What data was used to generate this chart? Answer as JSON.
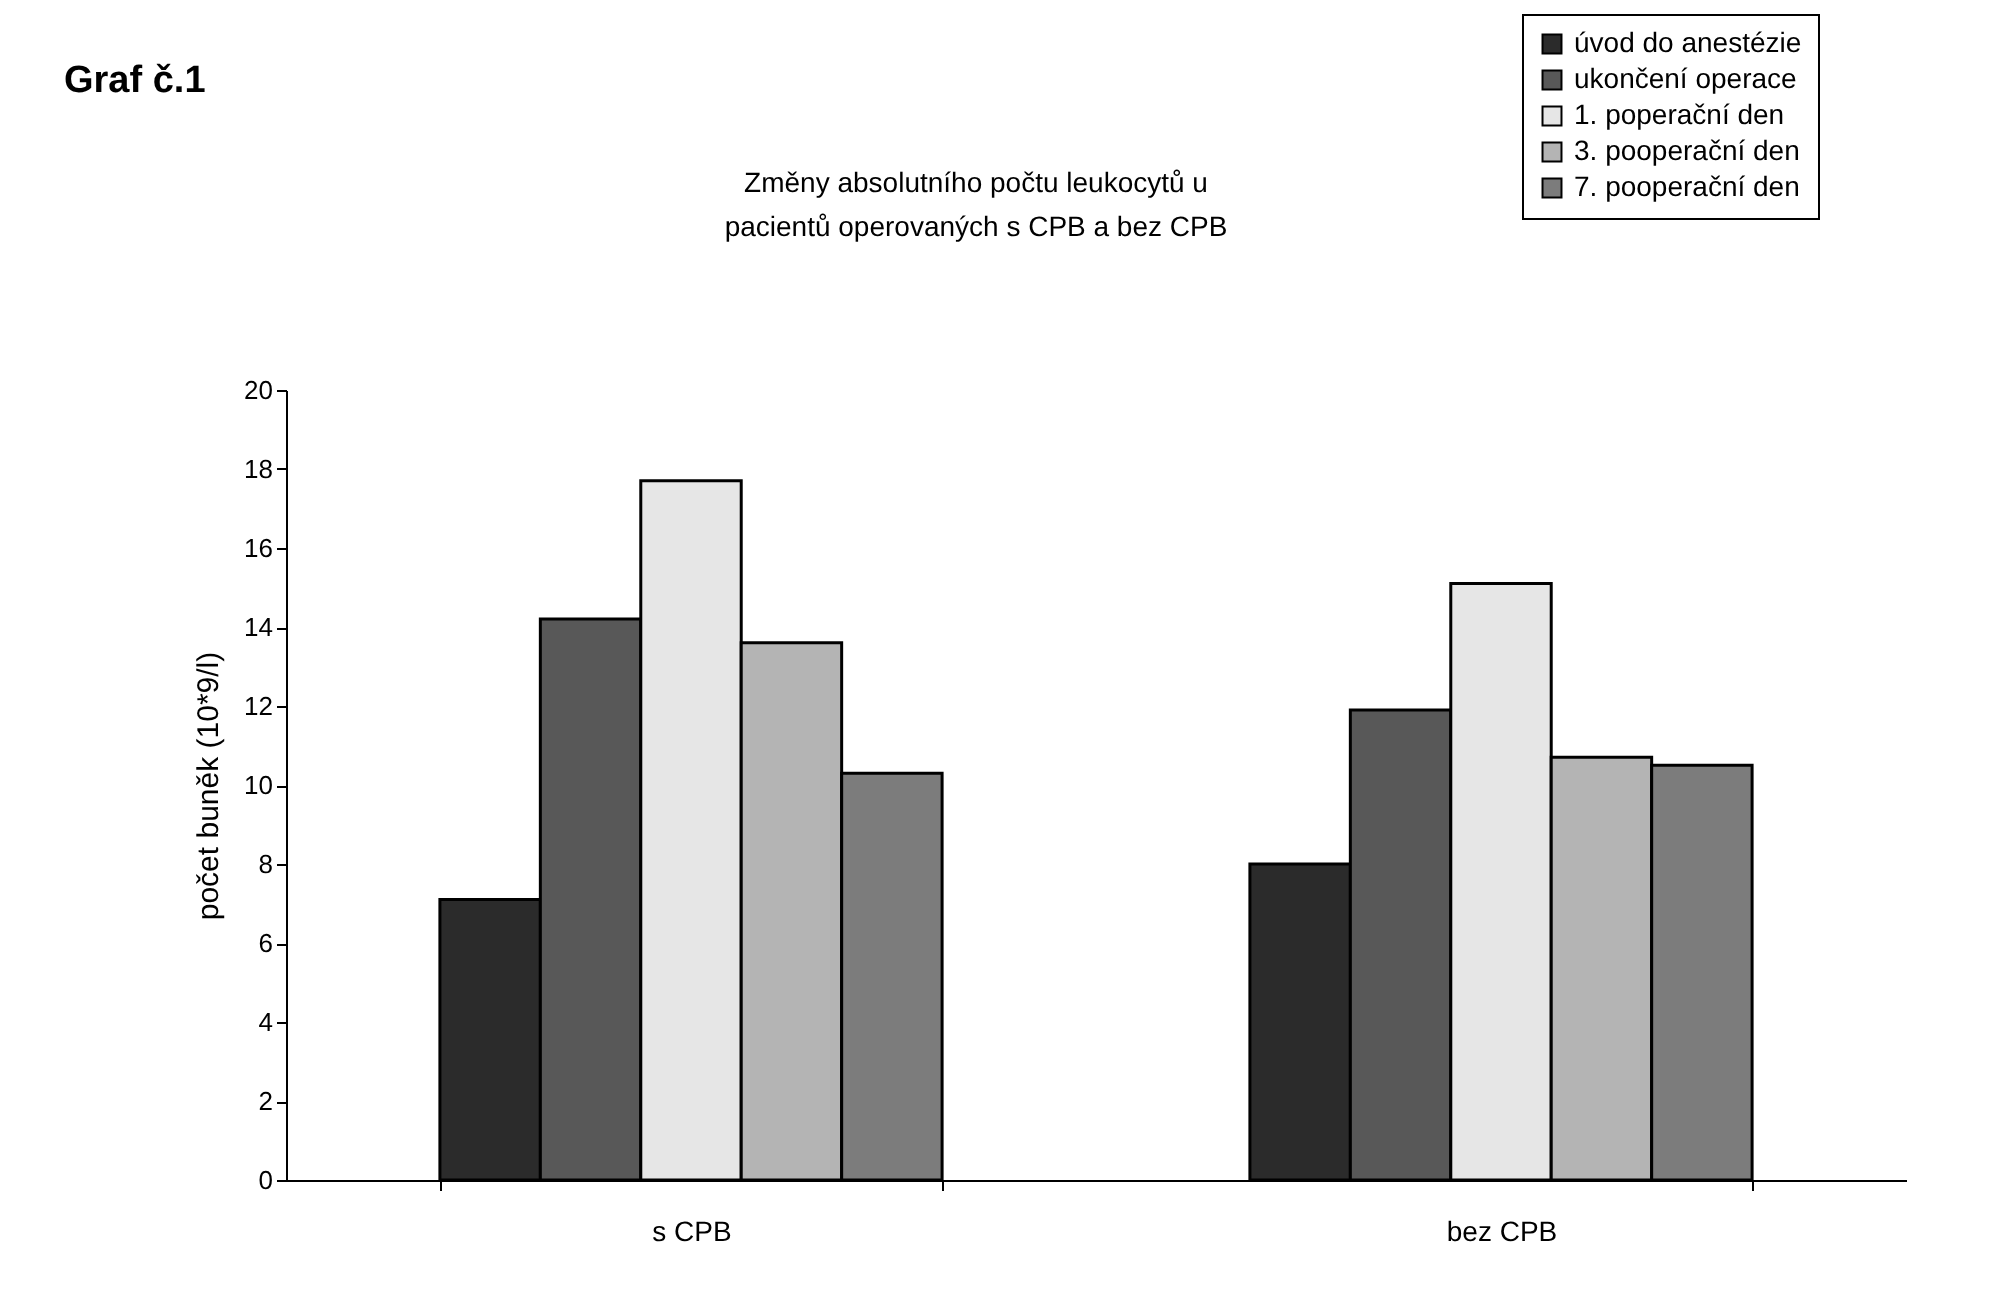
{
  "chart_data": {
    "type": "bar",
    "title": "Graf č.1",
    "subtitle": "Změny absolutního počtu leukocytů u pacientů operovaných s CPB a bez CPB",
    "ylabel": "počet buněk (10*9/l)",
    "categories": [
      "s CPB",
      "bez CPB"
    ],
    "series": [
      {
        "name": "úvod do anestézie",
        "color": "#2b2b2b",
        "values": [
          7.1,
          8.0
        ]
      },
      {
        "name": "ukončení operace",
        "color": "#585858",
        "values": [
          14.2,
          11.9
        ]
      },
      {
        "name": "1. poperační den",
        "color": "#e6e6e6",
        "values": [
          17.7,
          15.1
        ]
      },
      {
        "name": "3. pooperační den",
        "color": "#b4b4b4",
        "values": [
          13.6,
          10.7
        ]
      },
      {
        "name": "7. pooperační den",
        "color": "#7c7c7c",
        "values": [
          10.3,
          10.5
        ]
      }
    ],
    "ylim": [
      0,
      20
    ],
    "yticks": [
      0,
      2,
      4,
      6,
      8,
      10,
      12,
      14,
      16,
      18,
      20
    ],
    "grid": false,
    "legend": "top right"
  }
}
